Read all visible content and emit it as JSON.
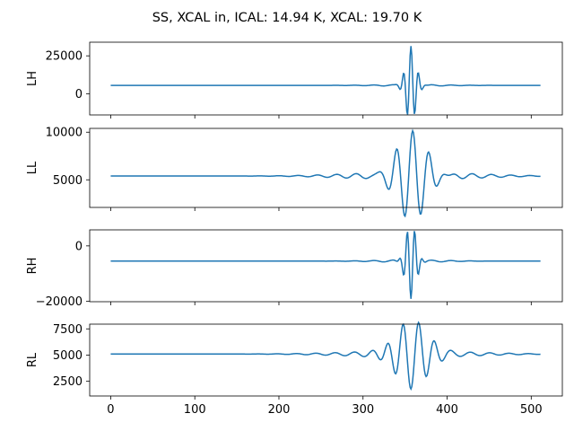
{
  "figure": {
    "title": "SS, XCAL in, ICAL: 14.94 K, XCAL: 19.70 K"
  },
  "chart_data": [
    {
      "type": "line",
      "ylabel": "LH",
      "xlim": [
        -25,
        537
      ],
      "ylim": [
        -14000,
        34000
      ],
      "yticks": [
        0,
        25000
      ],
      "ytick_labels": [
        "0",
        "25000"
      ],
      "xticks": [
        0,
        100,
        200,
        300,
        400,
        500
      ],
      "xtick_labels": [
        "",
        "",
        "",
        "",
        "",
        ""
      ],
      "color": "#1f77b4",
      "signal": {
        "baseline": 5500,
        "center": 357,
        "amplitude": 25500,
        "period": 9,
        "decay": 6,
        "ripple": 500,
        "ripple_width": 40,
        "npoints": 512
      }
    },
    {
      "type": "line",
      "ylabel": "LL",
      "xlim": [
        -25,
        537
      ],
      "ylim": [
        2100,
        10400
      ],
      "yticks": [
        5000,
        10000
      ],
      "ytick_labels": [
        "5000",
        "10000"
      ],
      "xticks": [
        0,
        100,
        200,
        300,
        400,
        500
      ],
      "xtick_labels": [
        "",
        "",
        "",
        "",
        "",
        ""
      ],
      "color": "#1f77b4",
      "signal": {
        "baseline": 5400,
        "center": 359,
        "amplitude": 4400,
        "period": 19,
        "decay": 18,
        "ripple": 400,
        "ripple_width": 70,
        "npoints": 512
      }
    },
    {
      "type": "line",
      "ylabel": "RH",
      "xlim": [
        -25,
        537
      ],
      "ylim": [
        -20200,
        5800
      ],
      "yticks": [
        -20000,
        0
      ],
      "ytick_labels": [
        "−20000",
        "0"
      ],
      "xticks": [
        0,
        100,
        200,
        300,
        400,
        500
      ],
      "xtick_labels": [
        "",
        "",
        "",
        "",
        "",
        ""
      ],
      "color": "#1f77b4",
      "signal": {
        "baseline": -5500,
        "center": 357,
        "amplitude": -14000,
        "period": 9,
        "decay": 6,
        "ripple": 400,
        "ripple_width": 40,
        "npoints": 512
      }
    },
    {
      "type": "line",
      "ylabel": "RL",
      "xlim": [
        -25,
        537
      ],
      "ylim": [
        1100,
        7950
      ],
      "yticks": [
        2500,
        5000,
        7500
      ],
      "ytick_labels": [
        "2500",
        "5000",
        "7500"
      ],
      "xticks": [
        0,
        100,
        200,
        300,
        400,
        500
      ],
      "xtick_labels": [
        "0",
        "100",
        "200",
        "300",
        "400",
        "500"
      ],
      "color": "#1f77b4",
      "signal": {
        "baseline": 5100,
        "center": 357,
        "amplitude": -3600,
        "period": 19,
        "decay": 18,
        "ripple": 300,
        "ripple_width": 70,
        "npoints": 512
      }
    }
  ]
}
